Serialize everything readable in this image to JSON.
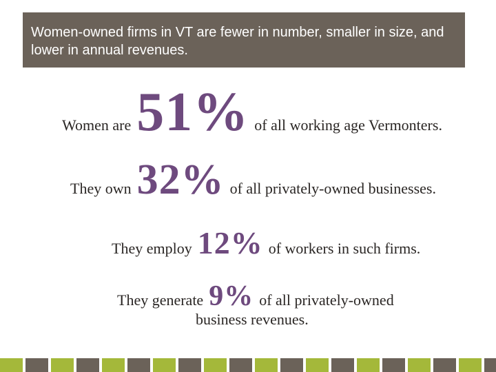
{
  "header": {
    "title": "Women-owned firms in VT are fewer in number, smaller in size, and lower in annual revenues."
  },
  "stats": [
    {
      "prefix": "Women are",
      "value": "51%",
      "suffix": "of all working age Vermonters."
    },
    {
      "prefix": "They own",
      "value": "32%",
      "suffix": "of all privately-owned businesses."
    },
    {
      "prefix": "They employ",
      "value": "12%",
      "suffix": "of workers in such firms."
    },
    {
      "prefix": "They generate",
      "value": "9%",
      "suffix": "of all privately-owned",
      "continuation": "business revenues."
    }
  ]
}
